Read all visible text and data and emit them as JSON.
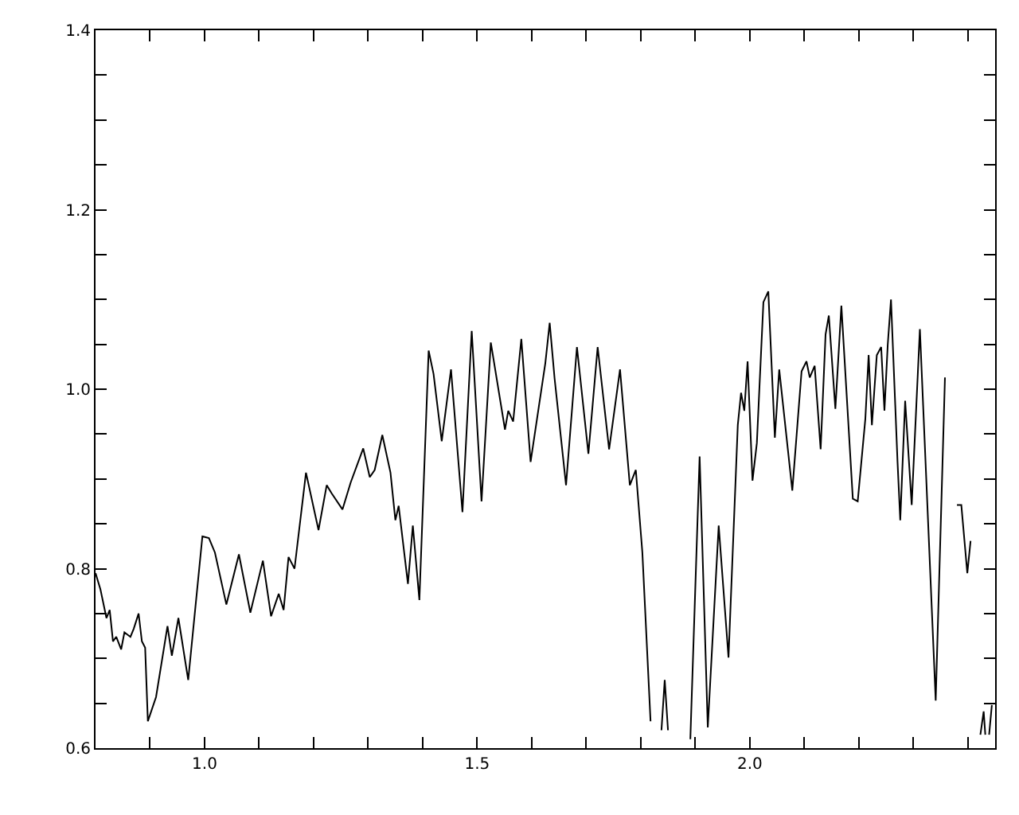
{
  "chart_data": {
    "type": "line",
    "marker": "none",
    "line_style": "solid",
    "xlim": [
      0.8,
      2.45
    ],
    "ylim": [
      0.6,
      1.4
    ],
    "xticks": [
      {
        "value": 0.9,
        "label": null
      },
      {
        "value": 1.0,
        "label": "1.0"
      },
      {
        "value": 1.1,
        "label": null
      },
      {
        "value": 1.2,
        "label": null
      },
      {
        "value": 1.3,
        "label": null
      },
      {
        "value": 1.4,
        "label": null
      },
      1.5,
      {
        "value": 1.6,
        "label": null
      },
      {
        "value": 1.7,
        "label": null
      },
      {
        "value": 1.8,
        "label": null
      },
      {
        "value": 1.9,
        "label": null
      },
      {
        "value": 2.0,
        "label": "2.0"
      },
      {
        "value": 2.1,
        "label": null
      },
      {
        "value": 2.2,
        "label": null
      },
      {
        "value": 2.3,
        "label": null
      },
      {
        "value": 2.4,
        "label": null
      }
    ],
    "yticks": [
      0.6,
      {
        "value": 0.65,
        "label": null
      },
      {
        "value": 0.7,
        "label": null
      },
      {
        "value": 0.75,
        "label": null
      },
      0.8,
      {
        "value": 0.85,
        "label": null
      },
      {
        "value": 0.9,
        "label": null
      },
      {
        "value": 0.95,
        "label": null
      },
      {
        "value": 1.0,
        "label": "1.0"
      },
      {
        "value": 1.05,
        "label": null
      },
      {
        "value": 1.1,
        "label": null
      },
      {
        "value": 1.15,
        "label": null
      },
      1.2,
      {
        "value": 1.25,
        "label": null
      },
      {
        "value": 1.3,
        "label": null
      },
      {
        "value": 1.35,
        "label": null
      },
      1.4
    ],
    "series": [
      {
        "color": "#000000",
        "x": [
          0.8,
          0.809,
          0.82,
          0.826,
          0.832,
          0.838,
          0.847,
          0.853,
          0.864,
          0.87,
          0.879,
          0.885,
          0.891,
          0.896,
          0.911,
          0.932,
          0.94,
          0.952,
          0.97,
          0.996,
          1.008,
          1.019,
          1.04,
          1.063,
          1.084,
          1.107,
          1.122,
          1.136,
          1.145,
          1.154,
          1.165,
          1.186,
          1.209,
          1.224,
          1.233,
          1.253,
          1.268,
          1.291,
          1.303,
          1.312,
          1.326,
          1.341,
          1.35,
          1.356,
          1.373,
          1.382,
          1.394,
          1.411,
          1.42,
          1.435,
          1.452,
          1.473,
          1.49,
          1.508,
          1.525,
          1.551,
          1.557,
          1.566,
          1.581,
          1.598,
          1.625,
          1.633,
          1.642,
          1.663,
          1.683,
          1.704,
          1.721,
          1.742,
          1.762,
          1.78,
          1.791,
          1.803,
          1.818,
          1.825,
          1.838,
          1.844,
          1.85,
          1.87,
          1.891,
          1.908,
          1.923,
          1.943,
          1.961,
          1.978,
          1.984,
          1.99,
          1.996,
          2.005,
          2.013,
          2.025,
          2.034,
          2.046,
          2.054,
          2.078,
          2.095,
          2.104,
          2.11,
          2.119,
          2.13,
          2.139,
          2.145,
          2.157,
          2.168,
          2.189,
          2.198,
          2.212,
          2.218,
          2.224,
          2.233,
          2.241,
          2.247,
          2.253,
          2.259,
          2.271,
          2.276,
          2.285,
          2.297,
          2.312,
          2.341,
          2.358,
          2.365,
          2.38,
          2.388,
          2.399,
          2.405,
          2.412,
          2.423,
          2.429,
          2.432,
          2.436,
          2.439,
          2.444
        ],
        "values": [
          0.795,
          0.777,
          0.745,
          0.754,
          0.719,
          0.724,
          0.71,
          0.729,
          0.724,
          0.733,
          0.75,
          0.719,
          0.712,
          0.63,
          0.657,
          0.736,
          0.703,
          0.745,
          0.676,
          0.836,
          0.834,
          0.818,
          0.76,
          0.816,
          0.751,
          0.809,
          0.747,
          0.772,
          0.754,
          0.813,
          0.8,
          0.907,
          0.843,
          0.893,
          0.884,
          0.866,
          0.896,
          0.934,
          0.902,
          0.91,
          0.949,
          0.907,
          0.854,
          0.87,
          0.783,
          0.848,
          0.765,
          1.043,
          1.017,
          0.942,
          1.022,
          0.863,
          1.065,
          0.875,
          1.052,
          0.955,
          0.976,
          0.964,
          1.056,
          0.919,
          1.029,
          1.074,
          1.012,
          0.893,
          1.047,
          0.928,
          1.047,
          0.933,
          1.022,
          0.893,
          0.91,
          0.818,
          0.63,
          null,
          0.62,
          0.676,
          0.62,
          null,
          0.61,
          0.925,
          0.623,
          0.848,
          0.701,
          0.96,
          0.996,
          0.976,
          1.031,
          0.898,
          0.94,
          1.097,
          1.109,
          0.946,
          1.022,
          0.887,
          1.02,
          1.031,
          1.013,
          1.026,
          0.933,
          1.061,
          1.082,
          0.978,
          1.093,
          0.878,
          0.875,
          0.967,
          1.038,
          0.96,
          1.038,
          1.047,
          0.976,
          1.049,
          1.1,
          0.919,
          0.854,
          0.987,
          0.871,
          1.067,
          0.653,
          1.013,
          null,
          0.871,
          0.871,
          0.795,
          0.831,
          null,
          0.615,
          0.641,
          0.615,
          null,
          0.615,
          0.648
        ]
      }
    ]
  }
}
